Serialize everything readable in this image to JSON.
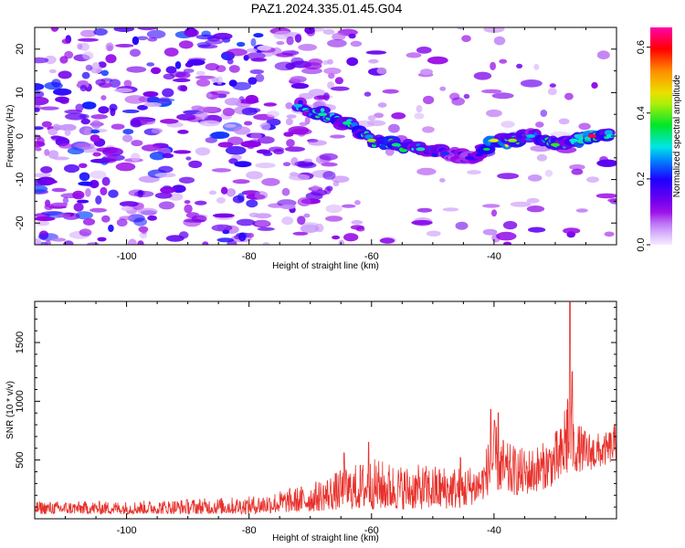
{
  "figure": {
    "title": "PAZ1.2024.335.01.45.G04"
  },
  "chart_data": [
    {
      "type": "heatmap",
      "title": "PAZ1.2024.335.01.45.G04",
      "xlabel": "Height of straight line (km)",
      "ylabel": "Frequency (Hz)",
      "xlim": [
        -115,
        -20
      ],
      "ylim": [
        -25,
        25
      ],
      "xticks": [
        -100,
        -80,
        -60,
        -40
      ],
      "yticks": [
        -20,
        -10,
        0,
        10,
        20
      ],
      "colorbar": {
        "label": "Normalized spectral amplitude",
        "range": [
          0.0,
          0.66
        ],
        "ticks": [
          0.0,
          0.2,
          0.4,
          0.6
        ],
        "colormap": "rainbow (white-violet-blue-cyan-green-yellow-red-magenta)"
      },
      "ridge": {
        "description": "Strong signal ridge descending from ~+7 Hz near -72 km to ~0 Hz beyond -60 km, strongest near -25 km",
        "points": [
          {
            "x": -72,
            "y": 7,
            "amp": 0.28
          },
          {
            "x": -68,
            "y": 5,
            "amp": 0.32
          },
          {
            "x": -64,
            "y": 3,
            "amp": 0.33
          },
          {
            "x": -60,
            "y": -1,
            "amp": 0.42
          },
          {
            "x": -56,
            "y": -2,
            "amp": 0.34
          },
          {
            "x": -52,
            "y": -3,
            "amp": 0.32
          },
          {
            "x": -48,
            "y": -4,
            "amp": 0.22
          },
          {
            "x": -44,
            "y": -5,
            "amp": 0.18
          },
          {
            "x": -40,
            "y": -1,
            "amp": 0.45
          },
          {
            "x": -37,
            "y": -1,
            "amp": 0.42
          },
          {
            "x": -34,
            "y": 0,
            "amp": 0.28
          },
          {
            "x": -30,
            "y": -2,
            "amp": 0.38
          },
          {
            "x": -27,
            "y": -1,
            "amp": 0.3
          },
          {
            "x": -24,
            "y": 0,
            "amp": 0.62
          },
          {
            "x": -21,
            "y": 0,
            "amp": 0.3
          }
        ]
      },
      "background_level": 0.08
    },
    {
      "type": "line",
      "xlabel": "Height of straight line (km)",
      "ylabel": "SNR (10 * v/v)",
      "xlim": [
        -115,
        -20
      ],
      "ylim": [
        0,
        1850
      ],
      "xticks": [
        -100,
        -80,
        -60,
        -40
      ],
      "yticks": [
        500,
        1000,
        1500
      ],
      "color": "#e8302a",
      "envelope": {
        "x": [
          -115,
          -100,
          -90,
          -80,
          -75,
          -70,
          -65,
          -60,
          -55,
          -50,
          -45,
          -42,
          -40,
          -38,
          -35,
          -32,
          -29,
          -28,
          -27,
          -25,
          -22,
          -20
        ],
        "low": [
          40,
          40,
          40,
          40,
          50,
          60,
          80,
          80,
          80,
          80,
          90,
          150,
          250,
          200,
          200,
          250,
          300,
          350,
          400,
          400,
          450,
          500
        ],
        "high": [
          150,
          150,
          170,
          190,
          240,
          300,
          420,
          520,
          460,
          460,
          450,
          480,
          850,
          650,
          600,
          650,
          800,
          1250,
          850,
          760,
          720,
          820
        ]
      },
      "spikes": [
        {
          "x": -40.5,
          "y": 930
        },
        {
          "x": -39.3,
          "y": 900
        },
        {
          "x": -27.6,
          "y": 1840
        },
        {
          "x": -27.2,
          "y": 1250
        },
        {
          "x": -60.5,
          "y": 650
        },
        {
          "x": -64.5,
          "y": 560
        },
        {
          "x": -45.5,
          "y": 520
        }
      ]
    }
  ]
}
